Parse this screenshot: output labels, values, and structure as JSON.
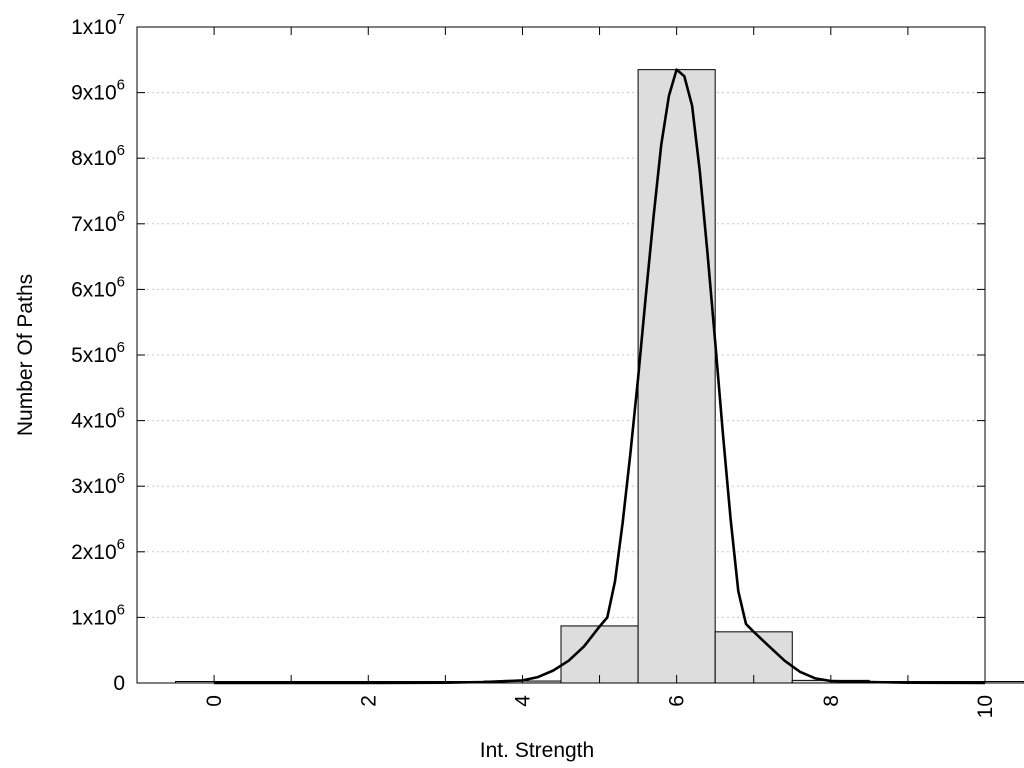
{
  "chart_data": {
    "type": "bar",
    "xlabel": "Int. Strength",
    "ylabel": "Number Of Paths",
    "xlim": [
      -1,
      10
    ],
    "ylim": [
      0,
      10000000
    ],
    "grid": "horizontal dotted",
    "x_ticks": [
      {
        "value": 0,
        "label": "0"
      },
      {
        "value": 2,
        "label": "2"
      },
      {
        "value": 4,
        "label": "4"
      },
      {
        "value": 6,
        "label": "6"
      },
      {
        "value": 8,
        "label": "8"
      },
      {
        "value": 10,
        "label": "10"
      }
    ],
    "y_ticks": [
      {
        "value": 0,
        "base": "0",
        "exp": ""
      },
      {
        "value": 1000000,
        "base": "1x10",
        "exp": "6"
      },
      {
        "value": 2000000,
        "base": "2x10",
        "exp": "6"
      },
      {
        "value": 3000000,
        "base": "3x10",
        "exp": "6"
      },
      {
        "value": 4000000,
        "base": "4x10",
        "exp": "6"
      },
      {
        "value": 5000000,
        "base": "5x10",
        "exp": "6"
      },
      {
        "value": 6000000,
        "base": "6x10",
        "exp": "6"
      },
      {
        "value": 7000000,
        "base": "7x10",
        "exp": "6"
      },
      {
        "value": 8000000,
        "base": "8x10",
        "exp": "6"
      },
      {
        "value": 9000000,
        "base": "9x10",
        "exp": "6"
      },
      {
        "value": 10000000,
        "base": "1x10",
        "exp": "7"
      }
    ],
    "bars": {
      "bin_width": 1,
      "x": [
        0,
        1,
        2,
        3,
        4,
        5,
        6,
        7,
        8,
        9,
        10
      ],
      "values": [
        0,
        0,
        0,
        0,
        30000,
        870000,
        9350000,
        780000,
        40000,
        0,
        0
      ],
      "color": "#dddddd"
    },
    "curve": {
      "color": "#000000",
      "points": [
        [
          0,
          0
        ],
        [
          1,
          0
        ],
        [
          2,
          0
        ],
        [
          3,
          5000
        ],
        [
          3.5,
          15000
        ],
        [
          4,
          40000
        ],
        [
          4.2,
          90000
        ],
        [
          4.4,
          190000
        ],
        [
          4.6,
          340000
        ],
        [
          4.8,
          560000
        ],
        [
          5,
          860000
        ],
        [
          5.1,
          1000000
        ],
        [
          5.2,
          1550000
        ],
        [
          5.3,
          2450000
        ],
        [
          5.4,
          3500000
        ],
        [
          5.5,
          4650000
        ],
        [
          5.6,
          5900000
        ],
        [
          5.7,
          7100000
        ],
        [
          5.8,
          8200000
        ],
        [
          5.9,
          8950000
        ],
        [
          6,
          9350000
        ],
        [
          6.1,
          9250000
        ],
        [
          6.2,
          8800000
        ],
        [
          6.3,
          7800000
        ],
        [
          6.4,
          6550000
        ],
        [
          6.5,
          5200000
        ],
        [
          6.6,
          3800000
        ],
        [
          6.7,
          2500000
        ],
        [
          6.8,
          1400000
        ],
        [
          6.9,
          900000
        ],
        [
          7,
          780000
        ],
        [
          7.2,
          560000
        ],
        [
          7.4,
          340000
        ],
        [
          7.6,
          170000
        ],
        [
          7.8,
          70000
        ],
        [
          8,
          30000
        ],
        [
          8.5,
          15000
        ],
        [
          9,
          5000
        ],
        [
          10,
          0
        ]
      ]
    }
  }
}
